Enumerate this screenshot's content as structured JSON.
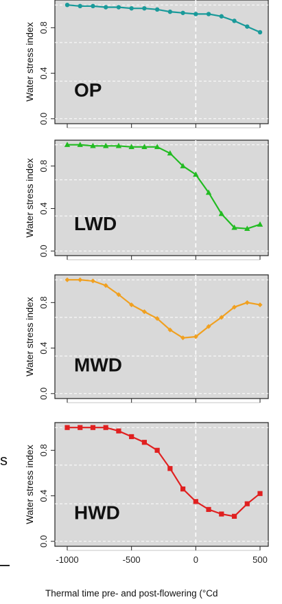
{
  "chart_data": [
    {
      "type": "line",
      "panel_label": "OP",
      "ylabel": "Water stress index",
      "xlim": [
        -1000,
        500
      ],
      "ylim": [
        0,
        1
      ],
      "yticks": [
        "0.0",
        "0.4",
        "0.8"
      ],
      "marker": "circle",
      "color": "#1a9a9a",
      "x": [
        -1000,
        -900,
        -800,
        -700,
        -600,
        -500,
        -400,
        -300,
        -200,
        -100,
        0,
        100,
        200,
        300,
        400,
        500
      ],
      "series": [
        {
          "values": [
            1.0,
            0.99,
            0.99,
            0.98,
            0.98,
            0.97,
            0.97,
            0.96,
            0.94,
            0.93,
            0.92,
            0.92,
            0.9,
            0.86,
            0.81,
            0.76
          ]
        }
      ]
    },
    {
      "type": "line",
      "panel_label": "LWD",
      "ylabel": "Water stress index",
      "xlim": [
        -1000,
        500
      ],
      "ylim": [
        0,
        1
      ],
      "yticks": [
        "0.0",
        "0.4",
        "0.8"
      ],
      "marker": "triangle",
      "color": "#22bb22",
      "x": [
        -1000,
        -900,
        -800,
        -700,
        -600,
        -500,
        -400,
        -300,
        -200,
        -100,
        0,
        100,
        200,
        300,
        400,
        500
      ],
      "series": [
        {
          "values": [
            1.0,
            1.0,
            0.99,
            0.99,
            0.99,
            0.98,
            0.98,
            0.98,
            0.92,
            0.8,
            0.72,
            0.55,
            0.35,
            0.22,
            0.21,
            0.25
          ]
        }
      ]
    },
    {
      "type": "line",
      "panel_label": "MWD",
      "ylabel": "Water stress index",
      "xlim": [
        -1000,
        500
      ],
      "ylim": [
        0,
        1
      ],
      "yticks": [
        "0.0",
        "0.4",
        "0.8"
      ],
      "marker": "diamond",
      "color": "#f0a020",
      "x": [
        -1000,
        -900,
        -800,
        -700,
        -600,
        -500,
        -400,
        -300,
        -200,
        -100,
        0,
        100,
        200,
        300,
        400,
        500
      ],
      "series": [
        {
          "values": [
            1.0,
            1.0,
            0.99,
            0.95,
            0.87,
            0.78,
            0.72,
            0.66,
            0.56,
            0.49,
            0.5,
            0.59,
            0.67,
            0.76,
            0.8,
            0.78
          ]
        }
      ]
    },
    {
      "type": "line",
      "panel_label": "HWD",
      "ylabel": "Water stress index",
      "xlabel": "Thermal time pre- and post-flowering (°Cd",
      "xticks": [
        "-1000",
        "-500",
        "0",
        "500"
      ],
      "xlim": [
        -1000,
        500
      ],
      "ylim": [
        0,
        1
      ],
      "yticks": [
        "0.0",
        "0.4",
        "0.8"
      ],
      "marker": "square",
      "color": "#e02020",
      "x": [
        -1000,
        -900,
        -800,
        -700,
        -600,
        -500,
        -400,
        -300,
        -200,
        -100,
        0,
        100,
        200,
        300,
        400,
        500
      ],
      "series": [
        {
          "values": [
            1.0,
            1.0,
            1.0,
            1.0,
            0.97,
            0.92,
            0.87,
            0.8,
            0.64,
            0.46,
            0.35,
            0.28,
            0.24,
            0.22,
            0.33,
            0.42
          ]
        }
      ]
    }
  ],
  "left_edge_fragment": "s"
}
